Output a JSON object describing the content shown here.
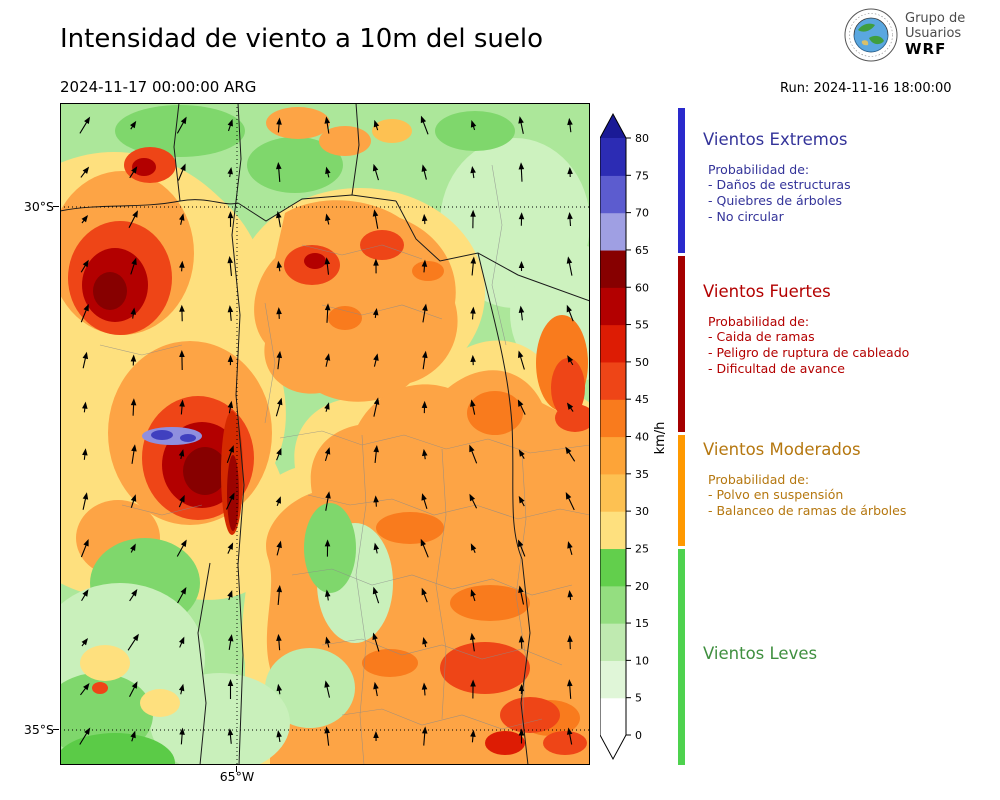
{
  "header": {
    "title": "Intensidad de viento a 10m del suelo",
    "valid_datetime": "2024-11-17 00:00:00 ARG",
    "run_label": "Run: 2024-11-16 18:00:00",
    "logo": {
      "line1": "Grupo de",
      "line2": "Usuarios",
      "line3": "WRF"
    }
  },
  "map": {
    "lat_ticks": [
      "30°S",
      "35°S"
    ],
    "lon_ticks": [
      "65°W"
    ]
  },
  "colorbar": {
    "unit": "km/h",
    "tick_labels": [
      "0",
      "5",
      "10",
      "15",
      "20",
      "25",
      "30",
      "35",
      "40",
      "45",
      "50",
      "55",
      "60",
      "65",
      "70",
      "75",
      "80"
    ],
    "segment_colors": [
      "#ffffff",
      "#e0f6d8",
      "#bfeab0",
      "#94de80",
      "#62cf4c",
      "#fee07e",
      "#fdc152",
      "#fda438",
      "#f97b1d",
      "#ee4517",
      "#dd1c04",
      "#b30000",
      "#870000",
      "#9f9fe3",
      "#5c5ccf",
      "#2c2cb4"
    ],
    "over_color": "#1a1a96",
    "under_color": "#ffffff"
  },
  "legend": {
    "sections": [
      {
        "title": "Vientos Extremos",
        "text_color": "#333399",
        "bar_color": "#2a2acc",
        "intro": "Probabilidad de:",
        "items": [
          "- Daños de estructuras",
          "- Quiebres de árboles",
          "- No circular"
        ]
      },
      {
        "title": "Vientos Fuertes",
        "text_color": "#b30000",
        "bar_color": "#a50000",
        "intro": "Probabilidad de:",
        "items": [
          "- Caida de ramas",
          "- Peligro de ruptura de cableado",
          "- Dificultad de avance"
        ]
      },
      {
        "title": "Vientos Moderados",
        "text_color": "#b5770f",
        "bar_color": "#ff9900",
        "intro": "Probabilidad de:",
        "items": [
          "- Polvo en suspensión",
          "- Balanceo de ramas de árboles"
        ]
      },
      {
        "title": "Vientos Leves",
        "text_color": "#3f8f3f",
        "bar_color": "#4ed24e",
        "intro": "",
        "items": []
      }
    ]
  }
}
